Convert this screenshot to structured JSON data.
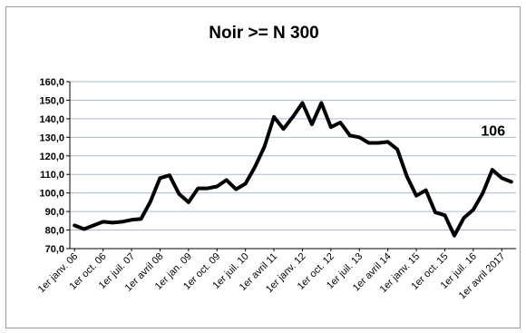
{
  "chart_data": {
    "type": "line",
    "title": "Noir >= N 300",
    "xlabel": "",
    "ylabel": "",
    "ylim": [
      70,
      160
    ],
    "yticks": [
      70,
      80,
      90,
      100,
      110,
      120,
      130,
      140,
      150,
      160
    ],
    "ytick_labels": [
      "70,0",
      "80,0",
      "90,0",
      "100,0",
      "110,0",
      "120,0",
      "130,0",
      "140,0",
      "150,0",
      "160,0"
    ],
    "grid": "horizontal",
    "legend": "none",
    "x_tick_labels": [
      "1er janv. 06",
      "1er oct. 06",
      "1er juil. 07",
      "1er avril 08",
      "1er jan. 09",
      "1er oct. 09",
      "1er juil. 10",
      "1er avril 11",
      "1er janv. 12",
      "1er oct. 12",
      "1er juil. 13",
      "1er avril 14",
      "1er janv. 15",
      "1er oct. 15",
      "1er juil. 16",
      "1er avril 2017"
    ],
    "series": [
      {
        "color": "#000000",
        "values": [
          82.5,
          80.5,
          82.5,
          84.5,
          84,
          84.5,
          85.5,
          86,
          95.5,
          108,
          109.5,
          99.5,
          95,
          102.5,
          102.5,
          103.5,
          107,
          102,
          105,
          114,
          125,
          141,
          134.5,
          141,
          148.5,
          137,
          148.5,
          135.5,
          138,
          131,
          130,
          127,
          127,
          127.5,
          123.5,
          109,
          98.5,
          101.5,
          89.5,
          88,
          77,
          86.5,
          91,
          100,
          112.5,
          108,
          106
        ]
      }
    ],
    "annotations": [
      {
        "text": "106",
        "x_index": 46,
        "y": 106
      }
    ]
  }
}
